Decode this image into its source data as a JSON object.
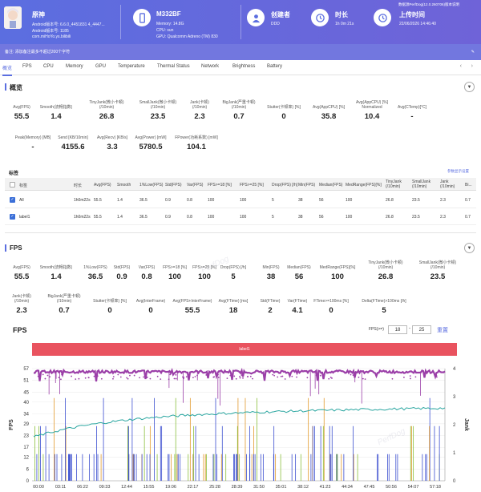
{
  "header": {
    "app_name": "原神",
    "app_info_lines": [
      "Android版本号: 6.6.0_4451831 4_4447...",
      "Android版本号: 1185",
      "com.miHoYo.ys.bilibili"
    ],
    "device_name": "M332BF",
    "device_lines": [
      "Memory: 14.8G",
      "CPU: sun",
      "GPU: Qualcomm Adreno (TM) 830"
    ],
    "creator_label": "创建者",
    "creator_value": "DDD",
    "duration_label": "时长",
    "duration_value": "1h 0m 21s",
    "upload_label": "上传时间",
    "upload_value": "22/06/2026 14:46:40",
    "top_right": "数据源PerfDog(12.0.260706)版本说明"
  },
  "note": "备注: 添加备注最多不超过200个字符",
  "tabs": [
    "概览",
    "FPS",
    "CPU",
    "Memory",
    "GPU",
    "Temperature",
    "Thermal Status",
    "Network",
    "Brightness",
    "Battery"
  ],
  "overview": {
    "title": "概览",
    "row1": [
      {
        "label": "Avg(FPS)",
        "value": "55.5"
      },
      {
        "label": "Smooth(流畅指数)",
        "value": "1.4"
      },
      {
        "label": "TinyJank(微小卡顿)\n(/10min)",
        "value": "26.8"
      },
      {
        "label": "SmallJank(微小卡顿)\n(/10min)",
        "value": "23.5"
      },
      {
        "label": "Jank(卡顿)\n(/10min)",
        "value": "2.3"
      },
      {
        "label": "BigJank(严重卡顿)\n(/10min)",
        "value": "0.7"
      },
      {
        "label": "Stutter(卡顿率) [%]",
        "value": "0"
      },
      {
        "label": "Avg(AppCPU) [%]",
        "value": "35.8"
      },
      {
        "label": "Avg(AppCPU) [%]\nNormalized",
        "value": "10.4"
      },
      {
        "label": "Avg(CTemp)[°C]",
        "value": "-"
      }
    ],
    "row2": [
      {
        "label": "Peak(Memory) [MB]",
        "value": "-"
      },
      {
        "label": "Send [KB/10min]",
        "value": "4155.6"
      },
      {
        "label": "Avg(Recv) [KB/s]",
        "value": "3.3"
      },
      {
        "label": "Avg(Power) [mW]",
        "value": "5780.5"
      },
      {
        "label": "FPower(功耗系数) [mW]",
        "value": "104.1"
      }
    ]
  },
  "labels": {
    "title": "标签",
    "settings_link": "参数显示设置",
    "headers": [
      "标签",
      "时长",
      "Avg(FPS)",
      "Smooth",
      "1%Low(FPS)",
      "Std(FPS)",
      "Var(FPS)",
      "FPS>=18 [%]",
      "FPS>=25 [%]",
      "Drop(FPS) [/h]",
      "Min(FPS)",
      "Median(FPS)",
      "MedRange(FPS)[%]",
      "TinyJank\n(/10min)",
      "SmallJank\n(/10min)",
      "Jank\n(/10min)",
      "Bi..."
    ],
    "rows": [
      [
        "All",
        "1h0m22s",
        "55.5",
        "1.4",
        "36.5",
        "0.9",
        "0.8",
        "100",
        "100",
        "5",
        "38",
        "56",
        "100",
        "26.8",
        "23.5",
        "2.3",
        "0.7"
      ],
      [
        "label1",
        "1h0m22s",
        "55.5",
        "1.4",
        "36.5",
        "0.9",
        "0.8",
        "100",
        "100",
        "5",
        "38",
        "56",
        "100",
        "26.8",
        "23.5",
        "2.3",
        "0.7"
      ]
    ]
  },
  "fps": {
    "title": "FPS",
    "row1": [
      {
        "label": "Avg(FPS)",
        "value": "55.5"
      },
      {
        "label": "Smooth(流畅指数)",
        "value": "1.4"
      },
      {
        "label": "1%Low(FPS)",
        "value": "36.5"
      },
      {
        "label": "Std(FPS)",
        "value": "0.9"
      },
      {
        "label": "Var(FPS)",
        "value": "0.8"
      },
      {
        "label": "FPS>=18 [%]",
        "value": "100"
      },
      {
        "label": "FPS>=25 [%]",
        "value": "100"
      },
      {
        "label": "Drop(FPS) [/h]",
        "value": "5"
      },
      {
        "label": "Min(FPS)",
        "value": "38"
      },
      {
        "label": "Median(FPS)",
        "value": "56"
      },
      {
        "label": "MedRange(FPS)[%]",
        "value": "100"
      },
      {
        "label": "TinyJank(微小卡顿)\n(/10min)",
        "value": "26.8"
      },
      {
        "label": "SmallJank(微小卡顿)\n(/10min)",
        "value": "23.5"
      }
    ],
    "row2": [
      {
        "label": "Jank(卡顿)\n(/10min)",
        "value": "2.3"
      },
      {
        "label": "BigJank(严重卡顿)\n(/10min)",
        "value": "0.7"
      },
      {
        "label": "Stutter(卡顿率) [%]",
        "value": "0"
      },
      {
        "label": "Avg(InterFrame)",
        "value": "0"
      },
      {
        "label": "Avg(FPS+InterFrame)",
        "value": "55.5"
      },
      {
        "label": "Avg(FTime) [ms]",
        "value": "18"
      },
      {
        "label": "Std(FTime)",
        "value": "2"
      },
      {
        "label": "Var(FTime)",
        "value": "4.1"
      },
      {
        "label": "FTime>=100ms [%]",
        "value": "0"
      },
      {
        "label": "Delta(FTime)>100ms [/h]",
        "value": "5"
      }
    ],
    "chart_title": "FPS",
    "fps_filter_label": "FPS(>=)",
    "fps_filter_values": [
      "18",
      "25"
    ],
    "reset_label": "重置",
    "label_bar": "label1"
  },
  "chart_data": {
    "type": "line",
    "title": "FPS",
    "ylabel": "FPS",
    "y2label": "Jank",
    "ylim": [
      0,
      57
    ],
    "y2lim": [
      0,
      4
    ],
    "yticks": [
      "0",
      "6",
      "12",
      "17",
      "23",
      "29",
      "34",
      "40",
      "45",
      "51",
      "57"
    ],
    "y2ticks": [
      "0",
      "1",
      "2",
      "3",
      "4"
    ],
    "xticks": [
      "00:00",
      "03:11",
      "06:22",
      "09:33",
      "12:44",
      "15:55",
      "19:06",
      "22:17",
      "25:28",
      "28:39",
      "31:50",
      "35:01",
      "38:12",
      "41:23",
      "44:34",
      "47:45",
      "50:56",
      "54:07",
      "57:18"
    ],
    "series": [
      {
        "name": "FPS",
        "color": "#9b3fa8"
      },
      {
        "name": "CPU",
        "color": "#2aa6a0"
      },
      {
        "name": "Jank",
        "color": "#3c4fd0"
      }
    ],
    "colors": {
      "fps": "#9b3fa8",
      "cpu": "#2aa6a0",
      "jank": "#3c4fd0",
      "tiny": "#e29a2e",
      "small": "#8bbf3c"
    },
    "watermark": "PerfDog"
  }
}
